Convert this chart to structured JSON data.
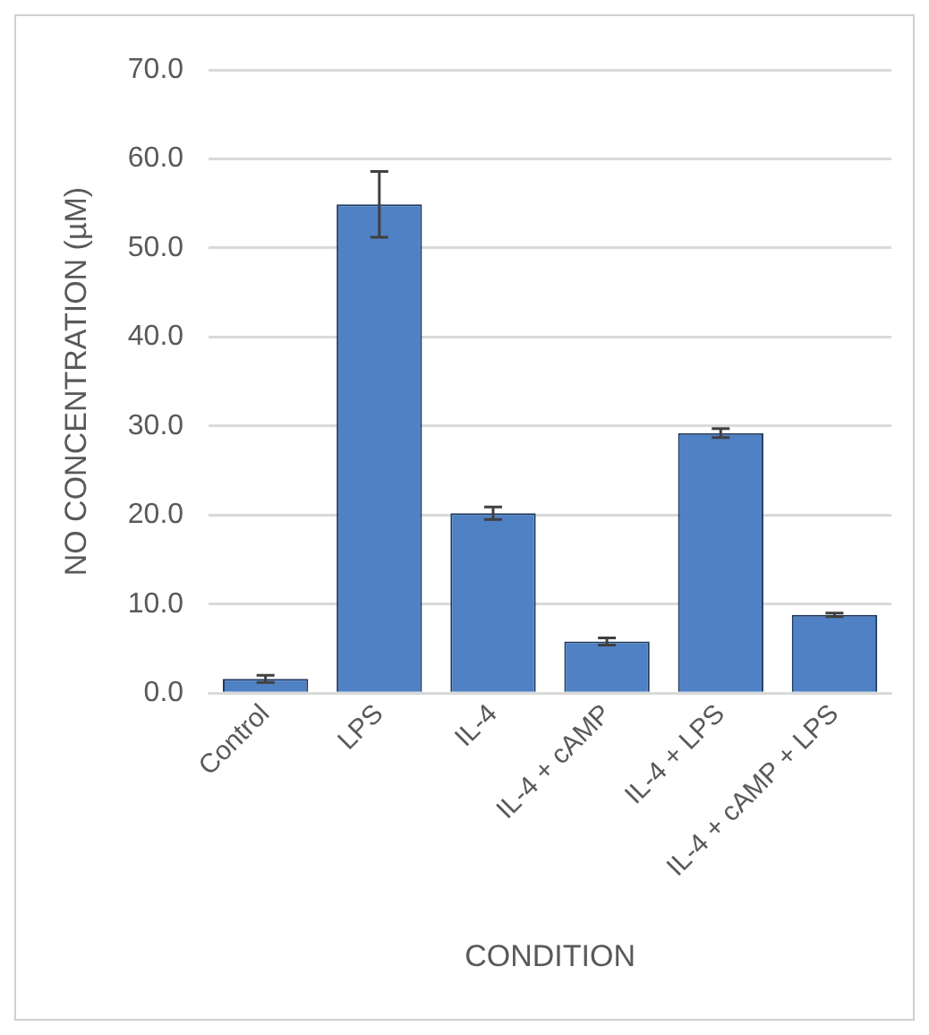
{
  "chart_data": {
    "type": "bar",
    "xlabel": "CONDITION",
    "ylabel": "NO CONCENTRATION (µM)",
    "categories": [
      "Control",
      "LPS",
      "IL-4",
      "IL-4 + cAMP",
      "IL-4 + LPS",
      "IL-4 + cAMP + LPS"
    ],
    "values": [
      1.6,
      54.9,
      20.2,
      5.8,
      29.2,
      8.8
    ],
    "errors": [
      0.4,
      3.7,
      0.7,
      0.4,
      0.5,
      0.2
    ],
    "color": "#4f81c4",
    "ylim": [
      0,
      70
    ],
    "yticks": [
      {
        "value": 0,
        "label": "0.0"
      },
      {
        "value": 10,
        "label": "10.0"
      },
      {
        "value": 20,
        "label": "20.0"
      },
      {
        "value": 30,
        "label": "30.0"
      },
      {
        "value": 40,
        "label": "40.0"
      },
      {
        "value": 50,
        "label": "50.0"
      },
      {
        "value": 60,
        "label": "60.0"
      },
      {
        "value": 70,
        "label": "70.0"
      }
    ],
    "grid": "y",
    "legend": false
  }
}
